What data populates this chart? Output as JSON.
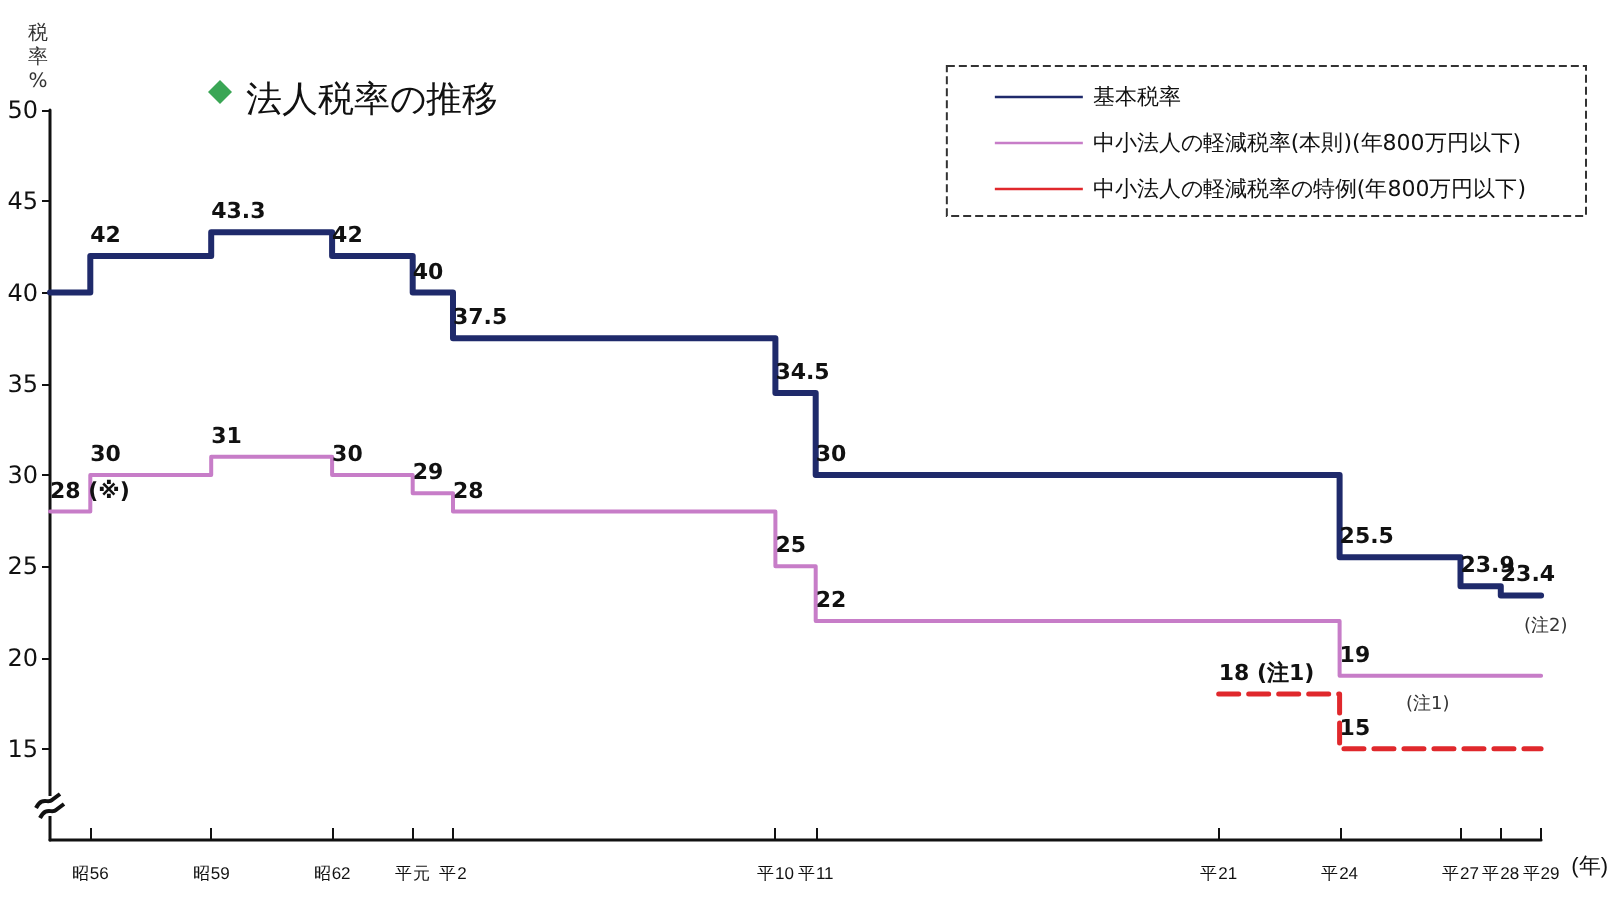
{
  "chart_data": {
    "type": "step",
    "title": "法人税率の推移",
    "ylabel": "税率%",
    "xlabel": "(年)",
    "categories": [
      null,
      "昭56",
      null,
      null,
      "昭59",
      null,
      null,
      "昭62",
      null,
      "平元",
      "平2",
      null,
      null,
      null,
      null,
      null,
      null,
      null,
      "平10",
      "平11",
      null,
      null,
      null,
      null,
      null,
      null,
      null,
      null,
      null,
      "平21",
      null,
      null,
      "平24",
      null,
      null,
      "平27",
      "平28",
      "平29"
    ],
    "ylim": [
      10,
      50
    ],
    "yticks": [
      15,
      20,
      25,
      30,
      35,
      40,
      45,
      50
    ],
    "series": [
      {
        "name": "基本税率",
        "color": "#1f2a6b",
        "line_style": "solid",
        "values": [
          40,
          42,
          42,
          42,
          43.3,
          43.3,
          43.3,
          42,
          42,
          40,
          37.5,
          37.5,
          37.5,
          37.5,
          37.5,
          37.5,
          37.5,
          37.5,
          34.5,
          30,
          30,
          30,
          30,
          30,
          30,
          30,
          30,
          30,
          30,
          30,
          30,
          30,
          25.5,
          25.5,
          25.5,
          23.9,
          23.4,
          23.4
        ],
        "value_labels": [
          null,
          "42",
          null,
          null,
          "43.3",
          null,
          null,
          "42",
          null,
          "40",
          "37.5",
          null,
          null,
          null,
          null,
          null,
          null,
          null,
          "34.5",
          "30",
          null,
          null,
          null,
          null,
          null,
          null,
          null,
          null,
          null,
          null,
          null,
          null,
          "25.5",
          null,
          null,
          "23.9",
          "23.4",
          null
        ]
      },
      {
        "name": "中小法人の軽減税率(本則)(年800万円以下)",
        "color": "#c77dc8",
        "line_style": "solid",
        "values": [
          28,
          30,
          30,
          30,
          31,
          31,
          31,
          30,
          30,
          29,
          28,
          28,
          28,
          28,
          28,
          28,
          28,
          28,
          25,
          22,
          22,
          22,
          22,
          22,
          22,
          22,
          22,
          22,
          22,
          22,
          22,
          22,
          19,
          19,
          19,
          19,
          19,
          19
        ],
        "value_labels": [
          "28 (※)",
          "30",
          null,
          null,
          "31",
          null,
          null,
          "30",
          null,
          "29",
          "28",
          null,
          null,
          null,
          null,
          null,
          null,
          null,
          "25",
          "22",
          null,
          null,
          null,
          null,
          null,
          null,
          null,
          null,
          null,
          null,
          null,
          null,
          "19",
          null,
          null,
          null,
          null,
          null
        ]
      },
      {
        "name": "中小法人の軽減税率の特例(年800万円以下)",
        "color": "#e0282c",
        "line_style": "dashed",
        "values": [
          null,
          null,
          null,
          null,
          null,
          null,
          null,
          null,
          null,
          null,
          null,
          null,
          null,
          null,
          null,
          null,
          null,
          null,
          null,
          null,
          null,
          null,
          null,
          null,
          null,
          null,
          null,
          null,
          null,
          18,
          18,
          18,
          15,
          15,
          15,
          15,
          15,
          15
        ],
        "value_labels": [
          null,
          null,
          null,
          null,
          null,
          null,
          null,
          null,
          null,
          null,
          null,
          null,
          null,
          null,
          null,
          null,
          null,
          null,
          null,
          null,
          null,
          null,
          null,
          null,
          null,
          null,
          null,
          null,
          null,
          "18 (注1)",
          null,
          null,
          "15",
          null,
          null,
          null,
          null,
          null
        ]
      }
    ],
    "annotations": [
      "(注1)",
      "(注2)"
    ],
    "legend": "top right",
    "grid": false,
    "marker": "none"
  }
}
